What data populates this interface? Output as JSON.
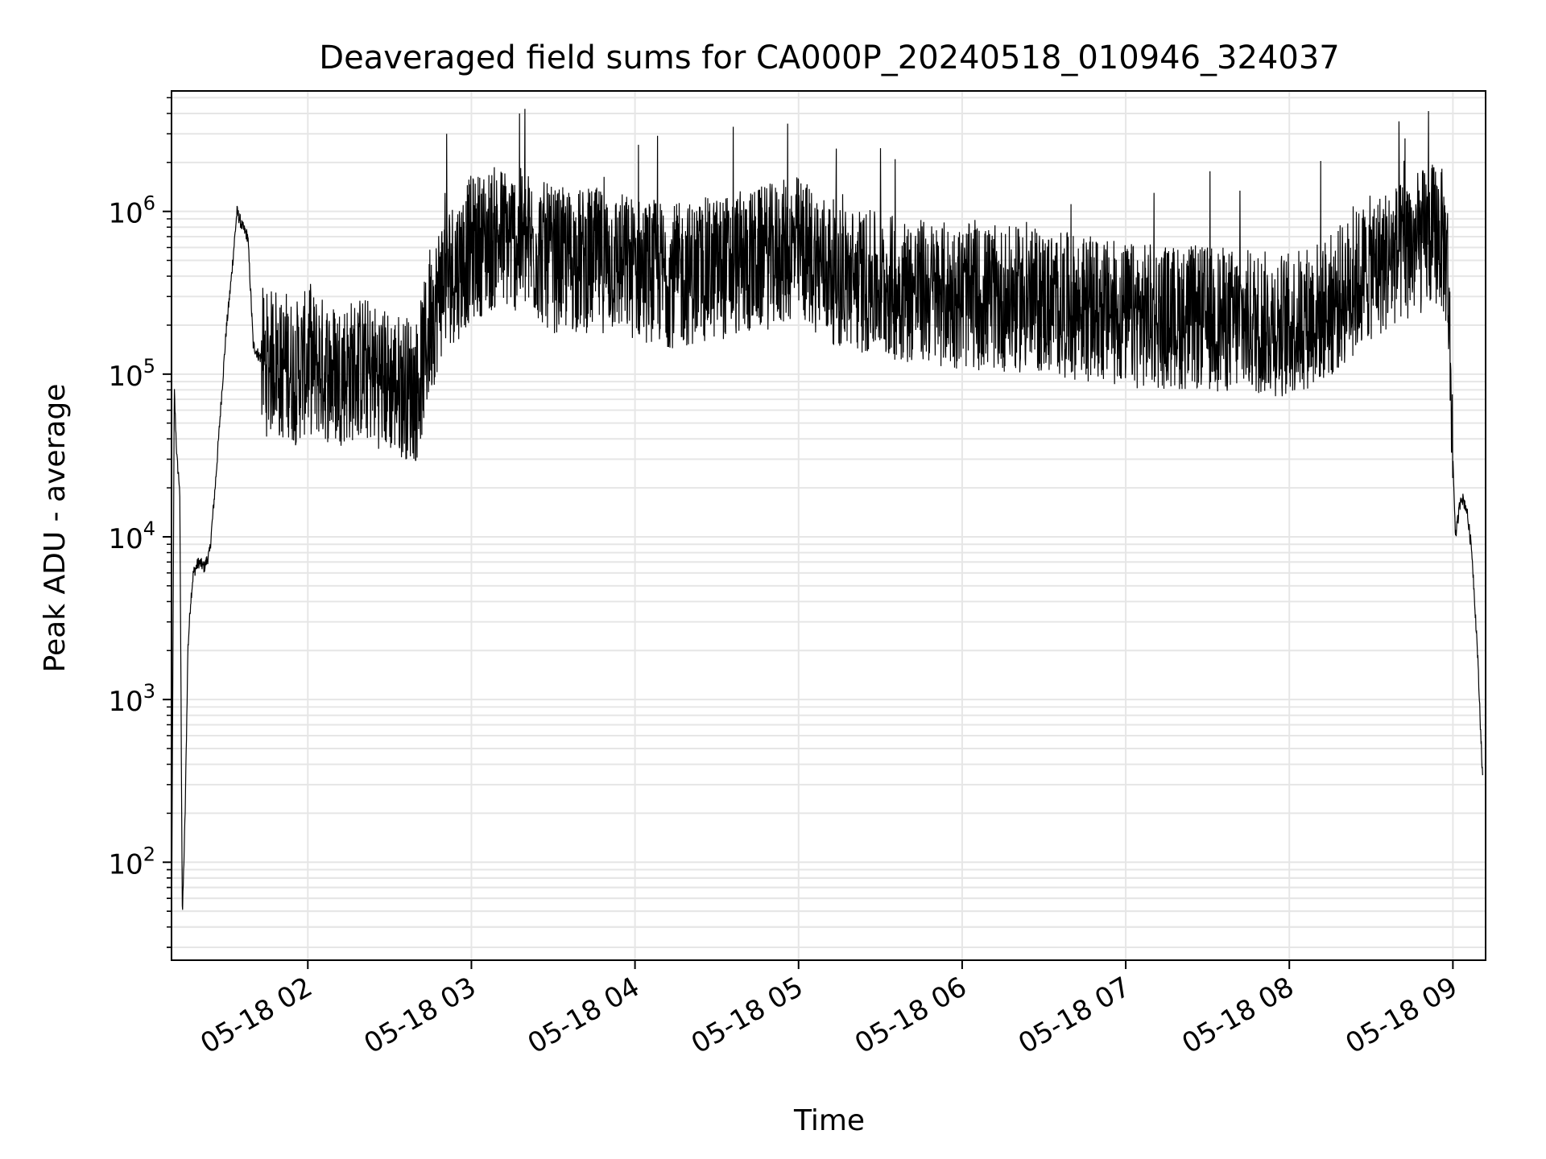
{
  "chart_data": {
    "type": "line",
    "title": "Deaveraged field sums for CA000P_20240518_010946_324037",
    "xlabel": "Time",
    "ylabel": "Peak ADU - average",
    "yscale": "log",
    "ylim": [
      25,
      5500000
    ],
    "xlim": [
      "2024-05-18T01:10:00",
      "2024-05-18T09:12:00"
    ],
    "grid": "on (major and minor)",
    "x_tick_labels": [
      "05-18 02",
      "05-18 03",
      "05-18 04",
      "05-18 05",
      "05-18 06",
      "05-18 07",
      "05-18 08",
      "05-18 09"
    ],
    "x_tick_times": [
      "2024-05-18T02:00:00",
      "2024-05-18T03:00:00",
      "2024-05-18T04:00:00",
      "2024-05-18T05:00:00",
      "2024-05-18T06:00:00",
      "2024-05-18T07:00:00",
      "2024-05-18T08:00:00",
      "2024-05-18T09:00:00"
    ],
    "y_ticks": [
      {
        "value": 100,
        "base": "10",
        "exp": "2"
      },
      {
        "value": 1000,
        "base": "10",
        "exp": "3"
      },
      {
        "value": 10000,
        "base": "10",
        "exp": "4"
      },
      {
        "value": 100000,
        "base": "10",
        "exp": "5"
      },
      {
        "value": 1000000,
        "base": "10",
        "exp": "6"
      }
    ],
    "line_color": "#000000",
    "grid_color": "#e6e6e6",
    "series": [
      {
        "x": [
          "2024-05-18T01:10:00",
          "2024-05-18T01:11:00",
          "2024-05-18T01:12:00",
          "2024-05-18T01:13:00",
          "2024-05-18T01:14:00",
          "2024-05-18T01:15:00",
          "2024-05-18T01:16:00",
          "2024-05-18T01:17:00",
          "2024-05-18T01:18:00",
          "2024-05-18T01:20:00",
          "2024-05-18T01:22:00",
          "2024-05-18T01:24:00",
          "2024-05-18T01:26:00",
          "2024-05-18T01:28:00",
          "2024-05-18T01:30:00",
          "2024-05-18T01:32:00",
          "2024-05-18T01:34:00",
          "2024-05-18T01:36:00",
          "2024-05-18T01:38:00",
          "2024-05-18T01:40:00",
          "2024-05-18T01:42:00",
          "2024-05-18T01:44:00",
          "2024-05-18T01:46:00",
          "2024-05-18T01:48:00",
          "2024-05-18T01:50:00",
          "2024-05-18T01:52:00",
          "2024-05-18T01:55:00",
          "2024-05-18T02:00:00",
          "2024-05-18T02:10:00",
          "2024-05-18T02:20:00",
          "2024-05-18T02:30:00",
          "2024-05-18T02:40:00",
          "2024-05-18T02:45:00",
          "2024-05-18T02:50:00",
          "2024-05-18T02:55:00",
          "2024-05-18T03:00:00",
          "2024-05-18T03:10:00",
          "2024-05-18T03:20:00",
          "2024-05-18T03:30:00",
          "2024-05-18T03:40:00",
          "2024-05-18T03:50:00",
          "2024-05-18T04:00:00",
          "2024-05-18T04:15:00",
          "2024-05-18T04:30:00",
          "2024-05-18T04:45:00",
          "2024-05-18T05:00:00",
          "2024-05-18T05:15:00",
          "2024-05-18T05:30:00",
          "2024-05-18T06:00:00",
          "2024-05-18T06:30:00",
          "2024-05-18T07:00:00",
          "2024-05-18T07:30:00",
          "2024-05-18T08:00:00",
          "2024-05-18T08:15:00",
          "2024-05-18T08:30:00",
          "2024-05-18T08:45:00",
          "2024-05-18T08:55:00",
          "2024-05-18T08:58:00",
          "2024-05-18T09:00:00",
          "2024-05-18T09:01:00",
          "2024-05-18T09:03:00",
          "2024-05-18T09:05:00",
          "2024-05-18T09:07:00",
          "2024-05-18T09:09:00",
          "2024-05-18T09:11:00"
        ],
        "y": [
          30,
          80000,
          30000,
          20000,
          45,
          200,
          2000,
          4000,
          6000,
          7000,
          6500,
          8000,
          20000,
          60000,
          180000,
          400000,
          1000000,
          800000,
          700000,
          150000,
          130000,
          120000,
          110000,
          140000,
          100000,
          120000,
          100000,
          120000,
          100000,
          110000,
          90000,
          80000,
          200000,
          400000,
          450000,
          600000,
          700000,
          650000,
          500000,
          500000,
          500000,
          450000,
          400000,
          450000,
          500000,
          600000,
          400000,
          350000,
          300000,
          280000,
          230000,
          220000,
          200000,
          260000,
          450000,
          600000,
          750000,
          500000,
          30000,
          10000,
          18000,
          15000,
          8000,
          2000,
          300
        ]
      }
    ]
  }
}
